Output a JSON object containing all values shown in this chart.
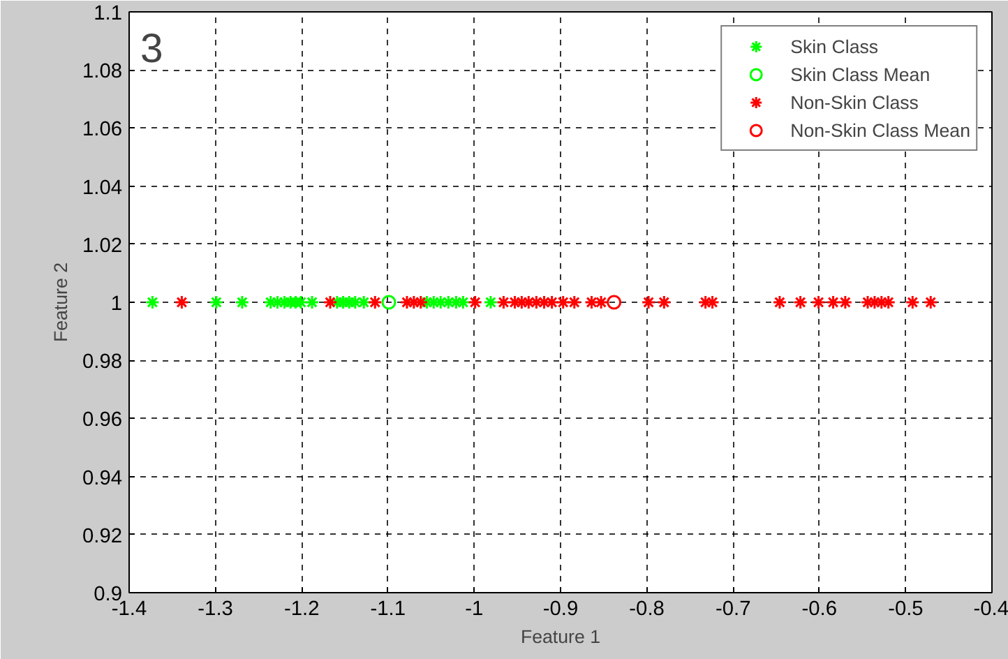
{
  "chart_data": {
    "type": "scatter",
    "xlabel": "Feature 1",
    "ylabel": "Feature 2",
    "annotations": [
      "3"
    ],
    "xlim": [
      -1.4,
      -0.4
    ],
    "xticks": [
      -1.4,
      -1.3,
      -1.2,
      -1.1,
      -1,
      -0.9,
      -0.8,
      -0.7,
      -0.6,
      -0.5,
      -0.4
    ],
    "ylim": [
      0.9,
      1.1
    ],
    "yticks": [
      0.9,
      0.92,
      0.94,
      0.96,
      0.98,
      1,
      1.02,
      1.04,
      1.06,
      1.08,
      1.1
    ],
    "grid": true,
    "legend": "top right",
    "series": [
      {
        "name": "Skin Class",
        "color": "#00ff00",
        "marker": "cross",
        "x": [
          -1.373,
          -1.299,
          -1.269,
          -1.236,
          -1.228,
          -1.22,
          -1.213,
          -1.207,
          -1.201,
          -1.188,
          -1.159,
          -1.152,
          -1.145,
          -1.138,
          -1.128,
          -1.055,
          -1.047,
          -1.039,
          -1.03,
          -1.021,
          -1.013,
          -0.981
        ],
        "values": [
          1,
          1,
          1,
          1,
          1,
          1,
          1,
          1,
          1,
          1,
          1,
          1,
          1,
          1,
          1,
          1,
          1,
          1,
          1,
          1,
          1,
          1
        ]
      },
      {
        "name": "Skin Class Mean",
        "color": "#00ff00",
        "marker": "circle",
        "x": [
          -1.099
        ],
        "values": [
          1
        ]
      },
      {
        "name": "Non-Skin Class",
        "color": "#ff0000",
        "marker": "cross",
        "x": [
          -1.339,
          -1.167,
          -1.115,
          -1.078,
          -1.07,
          -1.062,
          -0.999,
          -0.966,
          -0.953,
          -0.945,
          -0.937,
          -0.928,
          -0.919,
          -0.91,
          -0.897,
          -0.884,
          -0.864,
          -0.853,
          -0.798,
          -0.78,
          -0.732,
          -0.724,
          -0.646,
          -0.622,
          -0.601,
          -0.584,
          -0.57,
          -0.544,
          -0.536,
          -0.528,
          -0.52,
          -0.492,
          -0.471
        ],
        "values": [
          1,
          1,
          1,
          1,
          1,
          1,
          1,
          1,
          1,
          1,
          1,
          1,
          1,
          1,
          1,
          1,
          1,
          1,
          1,
          1,
          1,
          1,
          1,
          1,
          1,
          1,
          1,
          1,
          1,
          1,
          1,
          1,
          1
        ]
      },
      {
        "name": "Non-Skin Class Mean",
        "color": "#ff0000",
        "marker": "circle",
        "x": [
          -0.838
        ],
        "values": [
          1
        ]
      }
    ]
  }
}
